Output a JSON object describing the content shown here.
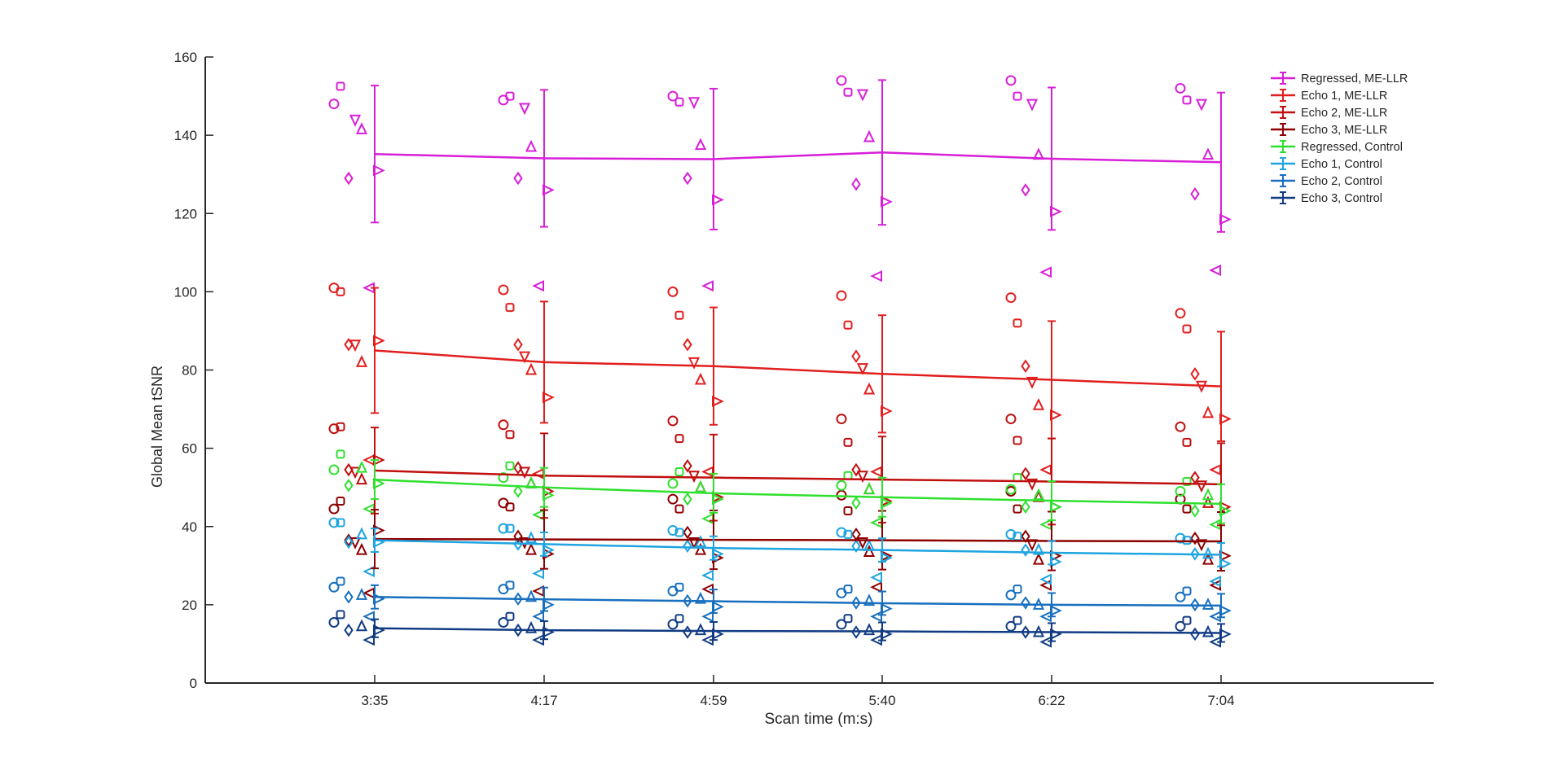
{
  "chart_data": {
    "type": "line",
    "title": "",
    "xlabel": "Scan time (m:s)",
    "ylabel": "Global Mean tSNR",
    "categories": [
      "3:35",
      "4:17",
      "4:59",
      "5:40",
      "6:22",
      "7:04"
    ],
    "ylim": [
      0,
      160
    ],
    "yticks": [
      0,
      20,
      40,
      60,
      80,
      100,
      120,
      140,
      160
    ],
    "grid": false,
    "legend_position": "top-right",
    "series": [
      {
        "name": "Regressed, ME-LLR",
        "color": "#d81fd8",
        "values": [
          135.2,
          134.1,
          133.9,
          135.6,
          134.0,
          133.1
        ],
        "err": [
          17.5,
          17.5,
          18.0,
          18.5,
          18.2,
          17.8
        ]
      },
      {
        "name": "Echo 1, ME-LLR",
        "color": "#e21f1f",
        "values": [
          85.0,
          82.0,
          81.0,
          79.0,
          77.5,
          75.8
        ],
        "err": [
          16.0,
          15.5,
          15.0,
          15.0,
          15.0,
          14.0
        ]
      },
      {
        "name": "Echo 2, ME-LLR",
        "color": "#c00f0f",
        "values": [
          54.3,
          53.0,
          52.5,
          52.0,
          51.5,
          50.8
        ],
        "err": [
          11.0,
          10.8,
          11.0,
          11.0,
          11.0,
          10.5
        ]
      },
      {
        "name": "Echo 3, ME-LLR",
        "color": "#8e0000",
        "values": [
          36.8,
          36.7,
          36.6,
          36.5,
          36.3,
          36.2
        ],
        "err": [
          7.5,
          7.5,
          7.5,
          7.5,
          7.5,
          7.5
        ]
      },
      {
        "name": "Regressed, Control",
        "color": "#2fe02f",
        "values": [
          52.0,
          50.0,
          48.5,
          47.5,
          46.6,
          45.8
        ],
        "err": [
          5.0,
          5.0,
          5.0,
          5.0,
          5.0,
          5.0
        ]
      },
      {
        "name": "Echo 1, Control",
        "color": "#1ea4e0",
        "values": [
          36.5,
          35.5,
          34.5,
          34.0,
          33.3,
          32.8
        ],
        "err": [
          3.0,
          3.0,
          3.0,
          3.0,
          3.0,
          3.0
        ]
      },
      {
        "name": "Echo 2, Control",
        "color": "#176fbe",
        "values": [
          22.0,
          21.4,
          20.9,
          20.4,
          20.0,
          19.8
        ],
        "err": [
          3.0,
          3.0,
          3.0,
          3.0,
          3.0,
          3.0
        ]
      },
      {
        "name": "Echo 3, Control",
        "color": "#113c83",
        "values": [
          14.0,
          13.5,
          13.3,
          13.2,
          13.0,
          12.8
        ],
        "err": [
          2.3,
          2.3,
          2.3,
          2.3,
          2.3,
          2.3
        ]
      }
    ],
    "subject_points": [
      {
        "series": 0,
        "marker": "circle",
        "values": [
          148,
          149,
          150,
          154,
          154,
          152
        ]
      },
      {
        "series": 0,
        "marker": "square",
        "values": [
          152.5,
          150,
          148.5,
          151,
          150,
          149
        ]
      },
      {
        "series": 0,
        "marker": "diamond",
        "values": [
          129,
          129,
          129,
          127.5,
          126,
          125
        ]
      },
      {
        "series": 0,
        "marker": "triangle-down",
        "values": [
          144,
          147,
          148.5,
          150.5,
          148,
          148
        ]
      },
      {
        "series": 0,
        "marker": "triangle-up",
        "values": [
          141.5,
          137,
          137.5,
          139.5,
          135,
          135
        ]
      },
      {
        "series": 0,
        "marker": "triangle-right",
        "values": [
          131,
          126,
          123.5,
          123,
          120.5,
          118.5
        ]
      },
      {
        "series": 0,
        "marker": "triangle-left",
        "values": [
          101,
          101.5,
          101.5,
          104,
          105,
          105.5
        ]
      },
      {
        "series": 1,
        "marker": "circle",
        "values": [
          101,
          100.5,
          100,
          99,
          98.5,
          94.5
        ]
      },
      {
        "series": 1,
        "marker": "square",
        "values": [
          100,
          96,
          94,
          91.5,
          92,
          90.5
        ]
      },
      {
        "series": 1,
        "marker": "diamond",
        "values": [
          86.5,
          86.5,
          86.5,
          83.5,
          81,
          79
        ]
      },
      {
        "series": 1,
        "marker": "triangle-down",
        "values": [
          86.5,
          83.5,
          82,
          80.5,
          77,
          76
        ]
      },
      {
        "series": 1,
        "marker": "triangle-up",
        "values": [
          82,
          80,
          77.5,
          75,
          71,
          69
        ]
      },
      {
        "series": 1,
        "marker": "triangle-right",
        "values": [
          87.5,
          73,
          72,
          69.5,
          68.5,
          67.5
        ]
      },
      {
        "series": 1,
        "marker": "triangle-left",
        "values": [
          57,
          53.5,
          54,
          54,
          54.5,
          54.5
        ]
      },
      {
        "series": 2,
        "marker": "circle",
        "values": [
          65,
          66,
          67,
          67.5,
          67.5,
          65.5
        ]
      },
      {
        "series": 2,
        "marker": "square",
        "values": [
          65.5,
          63.5,
          62.5,
          61.5,
          62,
          61.5
        ]
      },
      {
        "series": 2,
        "marker": "diamond",
        "values": [
          54.5,
          55,
          55.5,
          54.5,
          53.5,
          52.5
        ]
      },
      {
        "series": 2,
        "marker": "triangle-down",
        "values": [
          54,
          54,
          53,
          53,
          51,
          50.5
        ]
      },
      {
        "series": 2,
        "marker": "triangle-up",
        "values": [
          52,
          51,
          50,
          49.5,
          47.5,
          46
        ]
      },
      {
        "series": 2,
        "marker": "triangle-right",
        "values": [
          57,
          49,
          47.5,
          46.5,
          45,
          45
        ]
      },
      {
        "series": 3,
        "marker": "circle",
        "values": [
          44.5,
          46,
          47,
          48,
          49,
          47
        ]
      },
      {
        "series": 3,
        "marker": "square",
        "values": [
          46.5,
          45,
          44.5,
          44,
          44.5,
          44.5
        ]
      },
      {
        "series": 3,
        "marker": "diamond",
        "values": [
          36.5,
          37.5,
          38.5,
          38,
          37.5,
          37
        ]
      },
      {
        "series": 3,
        "marker": "triangle-down",
        "values": [
          36,
          36,
          36,
          36,
          35.5,
          35.5
        ]
      },
      {
        "series": 3,
        "marker": "triangle-up",
        "values": [
          34,
          34,
          34,
          33.5,
          31.5,
          31.5
        ]
      },
      {
        "series": 3,
        "marker": "triangle-right",
        "values": [
          39,
          33,
          32,
          32.5,
          32.5,
          32.5
        ]
      },
      {
        "series": 3,
        "marker": "triangle-left",
        "values": [
          23,
          23.5,
          24,
          24.5,
          25,
          25
        ]
      },
      {
        "series": 4,
        "marker": "circle",
        "values": [
          54.5,
          52.5,
          51,
          50.5,
          49.5,
          49
        ]
      },
      {
        "series": 4,
        "marker": "square",
        "values": [
          58.5,
          55.5,
          54,
          53,
          52.5,
          51.5
        ]
      },
      {
        "series": 4,
        "marker": "diamond",
        "values": [
          50.5,
          49,
          47,
          46,
          45,
          44
        ]
      },
      {
        "series": 4,
        "marker": "triangle-up",
        "values": [
          55,
          51,
          50,
          49.5,
          48,
          48
        ]
      },
      {
        "series": 4,
        "marker": "triangle-left",
        "values": [
          44.5,
          43,
          42,
          41,
          40.5,
          40.5
        ]
      },
      {
        "series": 4,
        "marker": "triangle-right",
        "values": [
          51,
          48,
          47,
          46,
          45,
          44
        ]
      },
      {
        "series": 5,
        "marker": "circle",
        "values": [
          41,
          39.5,
          39,
          38.5,
          38,
          37
        ]
      },
      {
        "series": 5,
        "marker": "square",
        "values": [
          41,
          39.5,
          38.5,
          38,
          37.5,
          36.5
        ]
      },
      {
        "series": 5,
        "marker": "diamond",
        "values": [
          36,
          35.5,
          35,
          35,
          34,
          33
        ]
      },
      {
        "series": 5,
        "marker": "triangle-up",
        "values": [
          38,
          37,
          36,
          35,
          34,
          33
        ]
      },
      {
        "series": 5,
        "marker": "triangle-left",
        "values": [
          28.5,
          28,
          27.5,
          27,
          26.5,
          26
        ]
      },
      {
        "series": 5,
        "marker": "triangle-right",
        "values": [
          36,
          34,
          33,
          32,
          31,
          30.5
        ]
      },
      {
        "series": 6,
        "marker": "circle",
        "values": [
          24.5,
          24,
          23.5,
          23,
          22.5,
          22
        ]
      },
      {
        "series": 6,
        "marker": "square",
        "values": [
          26,
          25,
          24.5,
          24,
          24,
          23.5
        ]
      },
      {
        "series": 6,
        "marker": "diamond",
        "values": [
          22,
          21.5,
          21,
          20.5,
          20.5,
          20
        ]
      },
      {
        "series": 6,
        "marker": "triangle-up",
        "values": [
          22.5,
          22,
          21.5,
          21,
          20,
          20
        ]
      },
      {
        "series": 6,
        "marker": "triangle-left",
        "values": [
          17,
          17,
          17,
          17,
          17,
          17
        ]
      },
      {
        "series": 6,
        "marker": "triangle-right",
        "values": [
          21.5,
          20,
          19.5,
          19,
          18.5,
          18.5
        ]
      },
      {
        "series": 7,
        "marker": "circle",
        "values": [
          15.5,
          15.5,
          15,
          15,
          14.5,
          14.5
        ]
      },
      {
        "series": 7,
        "marker": "square",
        "values": [
          17.5,
          17,
          16.5,
          16.5,
          16,
          16
        ]
      },
      {
        "series": 7,
        "marker": "diamond",
        "values": [
          13.5,
          13.5,
          13,
          13,
          13,
          12.5
        ]
      },
      {
        "series": 7,
        "marker": "triangle-up",
        "values": [
          14.5,
          14,
          13.5,
          13.5,
          13,
          13
        ]
      },
      {
        "series": 7,
        "marker": "triangle-left",
        "values": [
          11,
          11,
          11,
          11,
          10.5,
          10.5
        ]
      },
      {
        "series": 7,
        "marker": "triangle-right",
        "values": [
          13.5,
          13,
          12.5,
          12.5,
          12.5,
          12.5
        ]
      }
    ]
  }
}
